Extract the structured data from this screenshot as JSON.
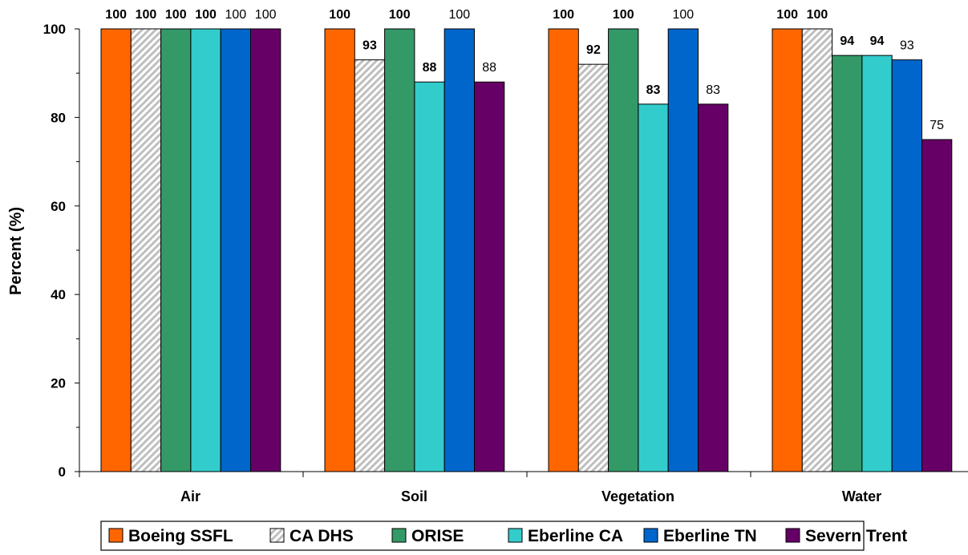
{
  "chart_data": {
    "type": "bar",
    "ylabel": "Percent (%)",
    "xlabel": "",
    "title": "",
    "ylim": [
      0,
      100
    ],
    "yticks": [
      "0",
      "20",
      "40",
      "60",
      "80",
      "100"
    ],
    "categories": [
      "Air",
      "Soil",
      "Vegetation",
      "Water"
    ],
    "series": [
      {
        "name": "Boeing SSFL",
        "color": "#ff6600",
        "pattern": "solid",
        "label_weight": "bold",
        "values": [
          100,
          100,
          100,
          100
        ],
        "labels": [
          "100",
          "100",
          "100",
          "100"
        ]
      },
      {
        "name": "CA DHS",
        "color": "#d9d9d9",
        "pattern": "hatch",
        "label_weight": "bold",
        "values": [
          100,
          93,
          92,
          100
        ],
        "labels": [
          "100",
          "93",
          "92",
          "100"
        ]
      },
      {
        "name": "ORISE",
        "color": "#339966",
        "pattern": "solid",
        "label_weight": "bold",
        "values": [
          100,
          100,
          100,
          94
        ],
        "labels": [
          "100",
          "100",
          "100",
          "94"
        ]
      },
      {
        "name": "Eberline CA",
        "color": "#33cccc",
        "pattern": "solid",
        "label_weight": "bold",
        "values": [
          100,
          88,
          83,
          94
        ],
        "labels": [
          "100",
          "88",
          "83",
          "94"
        ]
      },
      {
        "name": "Eberline TN",
        "color": "#0066cc",
        "pattern": "solid",
        "label_weight": "normal",
        "values": [
          100,
          100,
          100,
          93
        ],
        "labels": [
          "100",
          "100",
          "100",
          "93"
        ]
      },
      {
        "name": "Severn Trent",
        "color": "#660066",
        "pattern": "solid",
        "label_weight": "normal",
        "values": [
          100,
          88,
          83,
          75
        ],
        "labels": [
          "100",
          "88",
          "83",
          "75"
        ]
      }
    ],
    "grid": false,
    "legend": "bottom"
  }
}
